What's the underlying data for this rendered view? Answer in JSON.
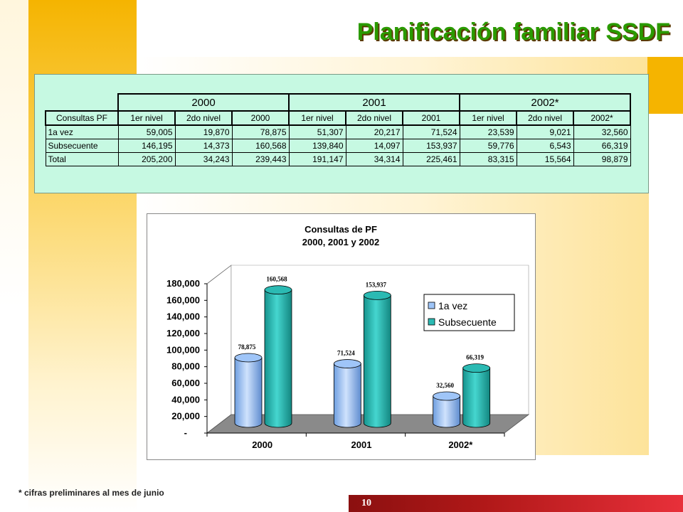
{
  "slide": {
    "title": "Planificación familiar SSDF",
    "footnote": "* cifras preliminares al mes de junio",
    "page_number": "10"
  },
  "table": {
    "year_headers": [
      "2000",
      "2001",
      "2002*"
    ],
    "columns": [
      "Consultas PF",
      "1er nivel",
      "2do nivel",
      "2000",
      "1er nivel",
      "2do nivel",
      "2001",
      "1er nivel",
      "2do nivel",
      "2002*"
    ],
    "rows": [
      [
        "1a vez",
        "59,005",
        "19,870",
        "78,875",
        "51,307",
        "20,217",
        "71,524",
        "23,539",
        "9,021",
        "32,560"
      ],
      [
        "Subsecuente",
        "146,195",
        "14,373",
        "160,568",
        "139,840",
        "14,097",
        "153,937",
        "59,776",
        "6,543",
        "66,319"
      ],
      [
        "Total",
        "205,200",
        "34,243",
        "239,443",
        "191,147",
        "34,314",
        "225,461",
        "83,315",
        "15,564",
        "98,879"
      ]
    ]
  },
  "chart_data": {
    "type": "bar",
    "title": "Consultas de PF",
    "subtitle": "2000, 2001 y 2002",
    "categories": [
      "2000",
      "2001",
      "2002*"
    ],
    "series": [
      {
        "name": "1a vez",
        "values": [
          78875,
          71524,
          32560
        ],
        "labels": [
          "78,875",
          "71,524",
          "32,560"
        ],
        "color": "#9fc5f8"
      },
      {
        "name": "Subsecuente",
        "values": [
          160568,
          153937,
          66319
        ],
        "labels": [
          "160,568",
          "153,937",
          "66,319"
        ],
        "color": "#2bbab3"
      }
    ],
    "ylim": [
      0,
      180000
    ],
    "yticks": [
      "-",
      "20,000",
      "40,000",
      "60,000",
      "80,000",
      "100,000",
      "120,000",
      "140,000",
      "160,000",
      "180,000"
    ],
    "xlabel": "",
    "ylabel": "",
    "legend_position": "right",
    "grid": false
  }
}
